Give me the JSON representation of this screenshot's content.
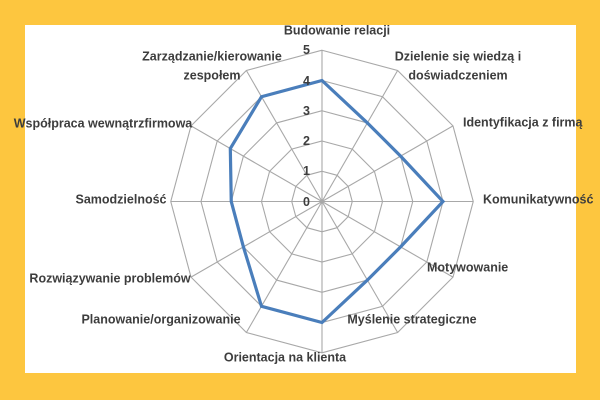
{
  "window": {
    "background_color": "#fdc63f",
    "panel_color": "#ffffff"
  },
  "chart_data": {
    "type": "radar",
    "categories": [
      "Budowanie relacji",
      "Dzielenie się wiedzą i doświadczeniem",
      "Identyfikacja z firmą",
      "Komunikatywność",
      "Motywowanie",
      "Myślenie strategiczne",
      "Orientacja na klienta",
      "Planowanie/organizowanie",
      "Rozwiązywanie problemów",
      "Samodzielność",
      "Współpraca wewnątrzfirmowa",
      "Zarządzanie/kierowanie zespołem"
    ],
    "values": [
      4,
      3,
      3,
      4,
      3,
      3,
      4,
      4,
      3,
      3,
      3.5,
      4
    ],
    "ticks": [
      "0",
      "1",
      "2",
      "3",
      "4",
      "5"
    ],
    "axis_range": [
      0,
      5
    ],
    "grid": true,
    "legend": "none",
    "line_color": "#4a7ebb",
    "grid_color": "#a8a8a8",
    "label_color": "#3d3d3d"
  }
}
